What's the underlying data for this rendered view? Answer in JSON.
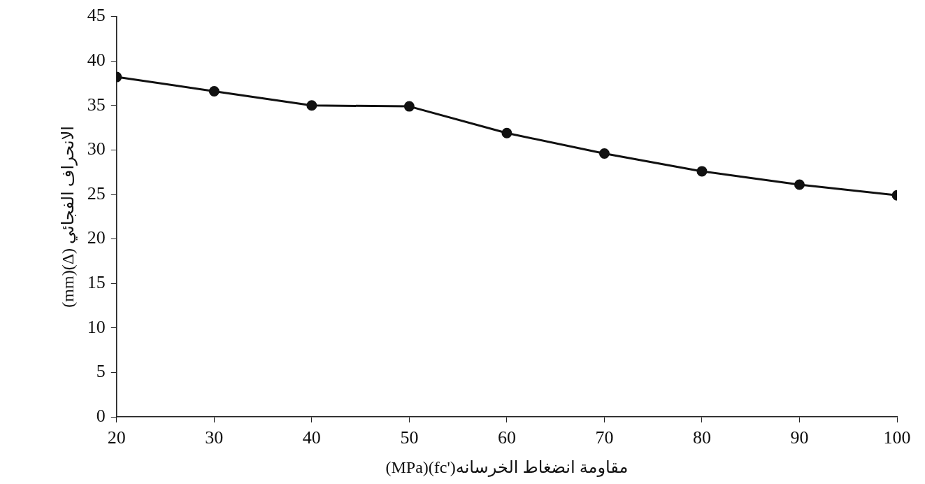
{
  "chart_data": {
    "type": "line",
    "xlabel": "(MPa)(fc')مقاومة انضغاط الخرسانه",
    "ylabel": "(mm)(Δ) الانحراف الفجائي",
    "x": [
      20,
      30,
      40,
      50,
      60,
      70,
      80,
      90,
      100
    ],
    "series": [
      {
        "color": "#111111",
        "values": [
          38.2,
          36.6,
          35.0,
          34.9,
          31.9,
          29.6,
          27.6,
          26.1,
          24.9
        ]
      }
    ],
    "xlim": [
      20,
      100
    ],
    "xticks": [
      20,
      30,
      40,
      50,
      60,
      70,
      80,
      90,
      100
    ],
    "ylim": [
      0,
      45
    ],
    "yticks": [
      0,
      5,
      10,
      15,
      20,
      25,
      30,
      35,
      40,
      45
    ],
    "grid": false,
    "legend": false,
    "marker": "circle",
    "line_style": "solid"
  }
}
